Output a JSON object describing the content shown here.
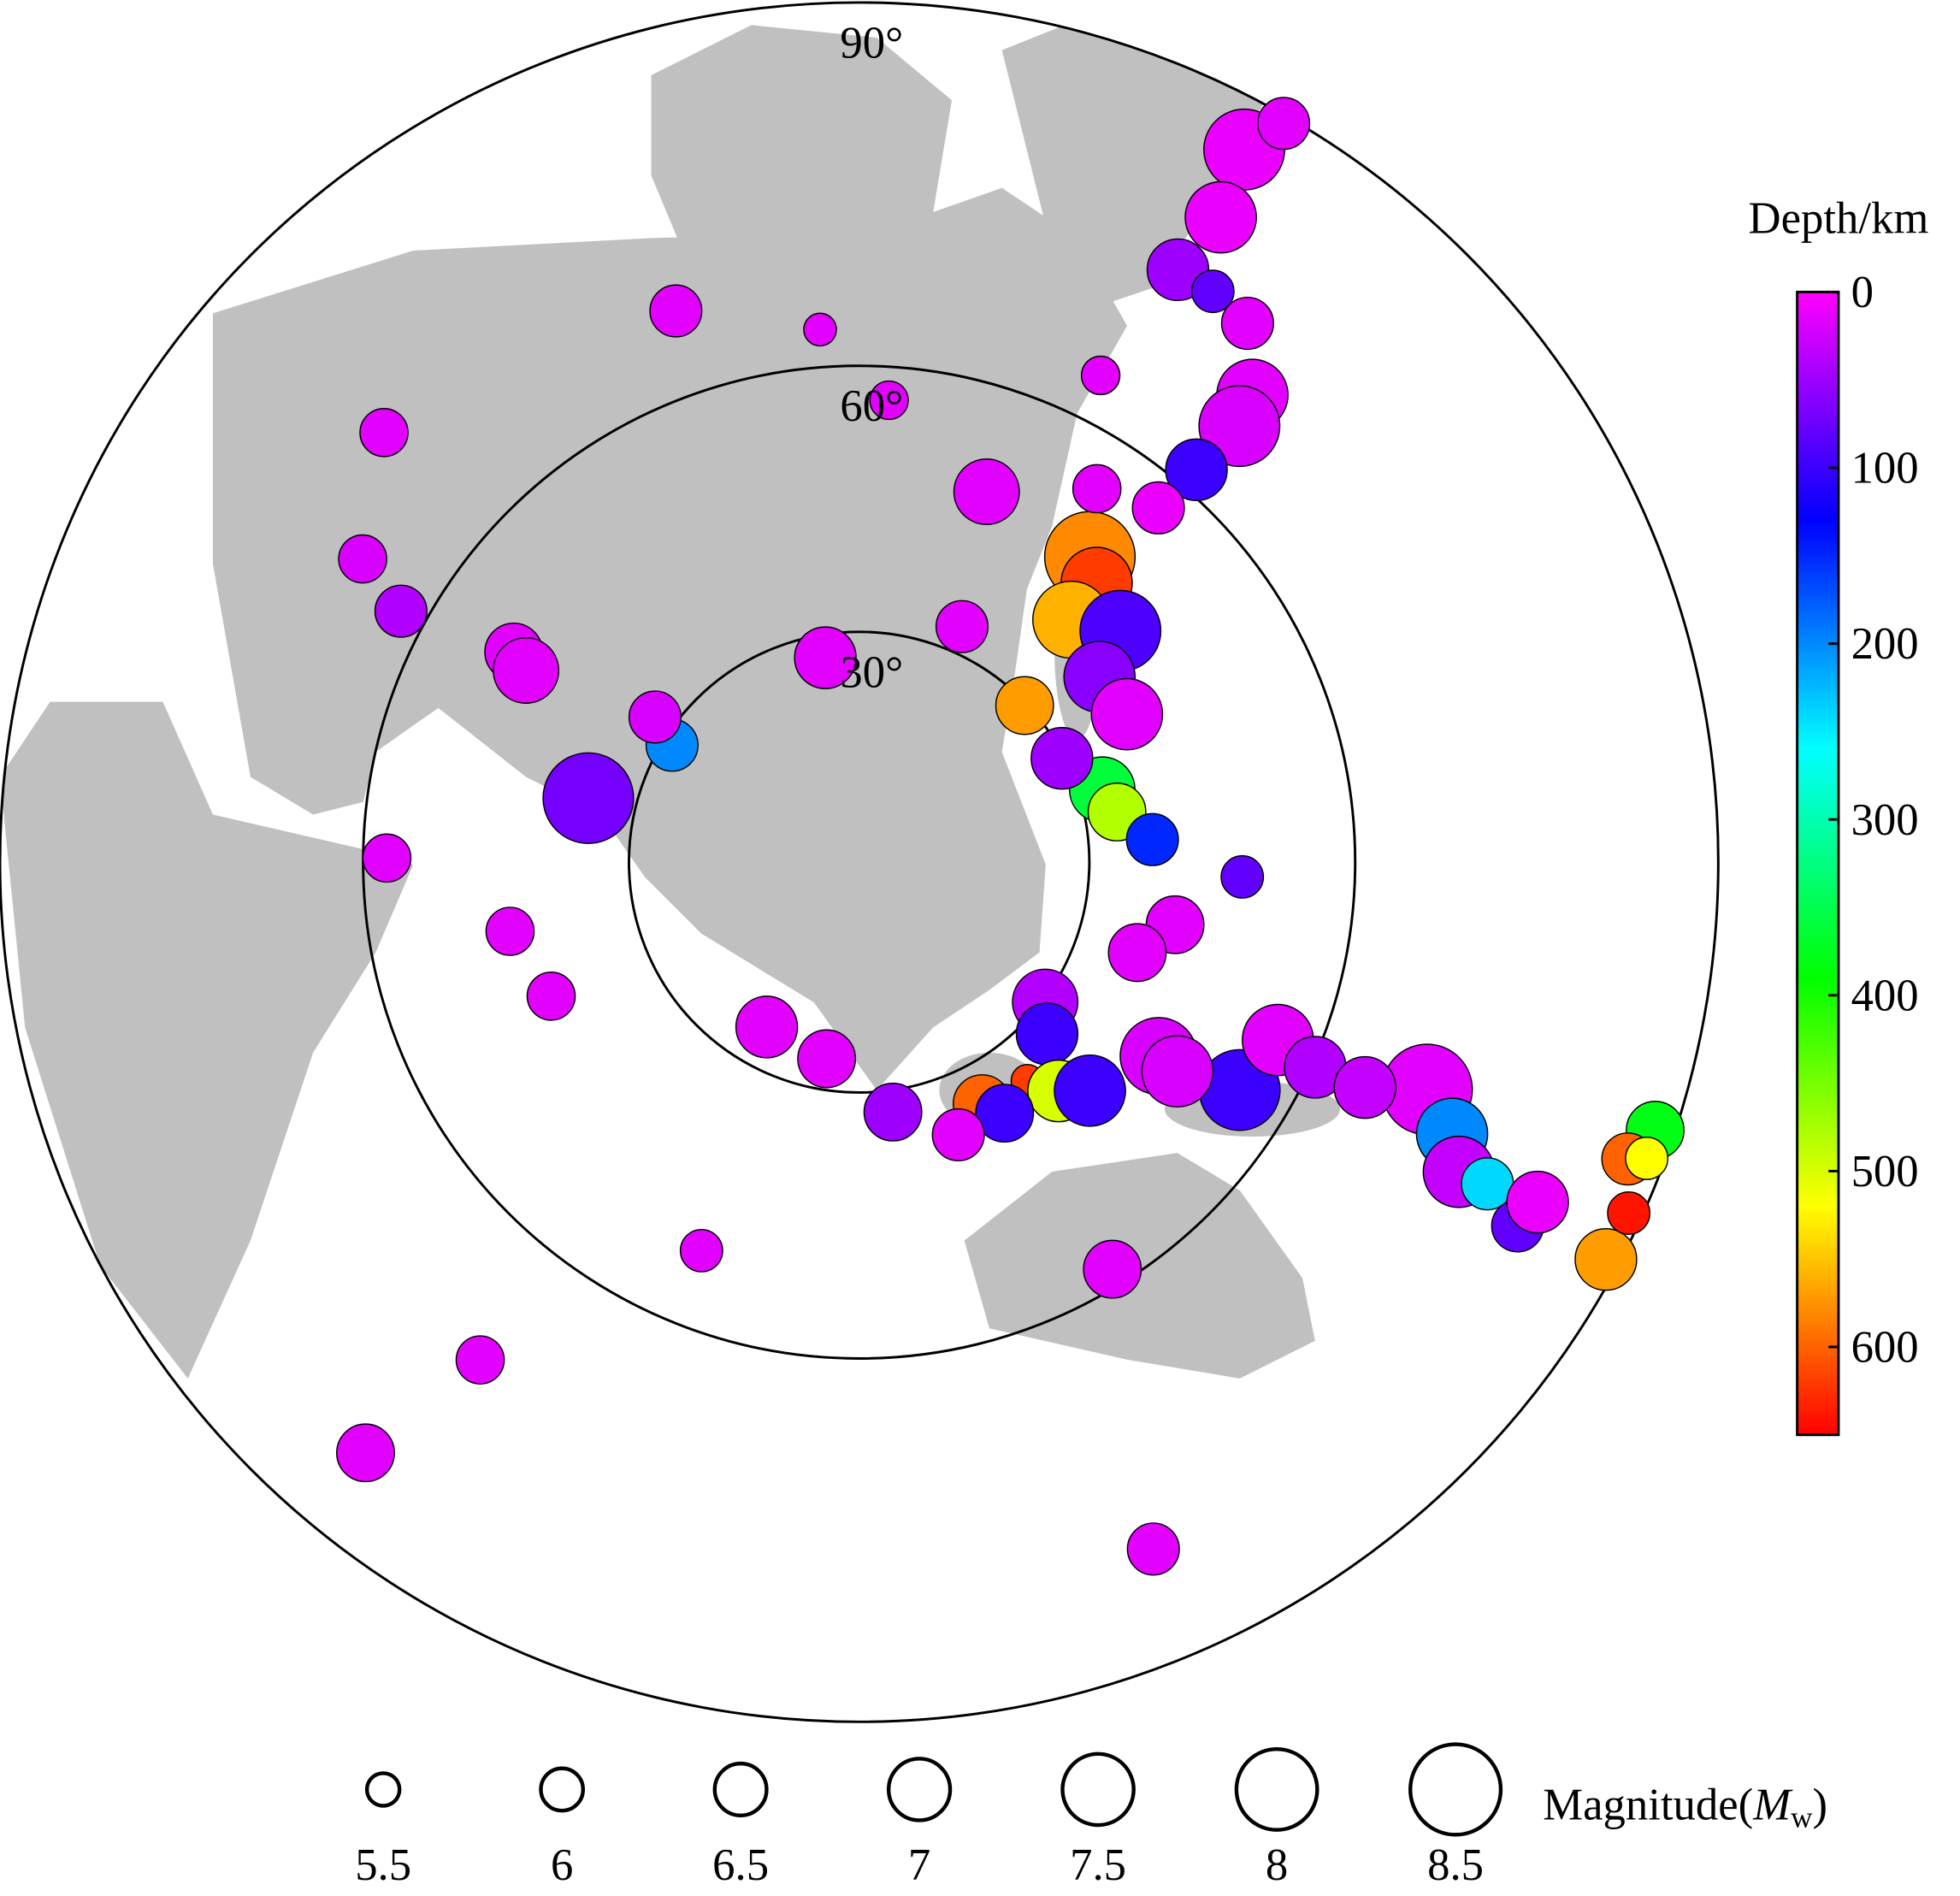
{
  "chart_data": {
    "type": "bubble-map",
    "projection": "stereographic",
    "distance_max": 90,
    "distance_circles": [
      {
        "value": 30,
        "label": "30°"
      },
      {
        "value": 60,
        "label": "60°"
      },
      {
        "value": 90,
        "label": "90°"
      }
    ],
    "events": {
      "distance": [
        86.6,
        81.4,
        76.1,
        76.0,
        75.4,
        70.8,
        67.9,
        62.1,
        56.7,
        48.0,
        46.2,
        41.1,
        44.2,
        38.9,
        39.2,
        29.7,
        32.9,
        34.0,
        37.8,
        48.1,
        41.1,
        37.6,
        30.3,
        33.0,
        35.6,
        38.9,
        41.4,
        45.1,
        54.6,
        55.8,
        60.4,
        70.9,
        74.4,
        76.3,
        78.8,
        82.4,
        82.9,
        88.7,
        87.6,
        88.8,
        89.1,
        89.1,
        35.0,
        37.3,
        37.3,
        32.7,
        26.1,
        24.8,
        58.3,
        82.0,
        52.0,
        72.1,
        83.7,
        42.7,
        45.0,
        57.6,
        35.9,
        28.8,
        32.5,
        50.4,
        48.2,
        62.6,
        68.2,
        73.4,
        68.1,
        63.7,
        56.6,
        49.0,
        54.5,
        33.3,
        27.1,
        64.6,
        89.5,
        29.7,
        47.8,
        65.6
      ],
      "azimuth": [
        28.4,
        29.3,
        28.3,
        31.8,
        35.8,
        40.1,
        41.1,
        40.7,
        40.2,
        37.1,
        40.4,
        41.2,
        48.5,
        52.4,
        61.1,
        46.6,
        73.4,
        79.0,
        85.6,
        92.2,
        101.2,
        108.0,
        126.9,
        132.4,
        142.4,
        138.9,
        134.7,
        122.9,
        120.9,
        113.0,
        114.2,
        111.8,
        114.6,
        117.3,
        117.1,
        118.9,
        116.6,
        108.6,
        111.1,
        110.6,
        118.0,
        114.5,
        153.0,
        149.9,
        160.0,
        172.3,
        189.4,
        209.3,
        148.1,
        156.8,
        202.1,
        217.3,
        219.9,
        246.5,
        258.8,
        270.5,
        283.3,
        302.0,
        305.4,
        301.3,
        299.9,
        298.7,
        301.4,
        312.1,
        341.6,
        355.8,
        3.7,
        19.0,
        32.5,
        23.6,
        350.6,
        26.4,
        29.9,
        62.9,
        123.3,
        114.0
      ],
      "depth": [
        10,
        10,
        50,
        80,
        15,
        15,
        20,
        100,
        10,
        580,
        620,
        560,
        90,
        60,
        15,
        570,
        360,
        480,
        150,
        80,
        15,
        15,
        40,
        100,
        620,
        500,
        100,
        20,
        100,
        15,
        40,
        15,
        200,
        30,
        240,
        80,
        10,
        380,
        600,
        520,
        570,
        640,
        600,
        100,
        15,
        50,
        15,
        15,
        15,
        15,
        15,
        15,
        15,
        15,
        15,
        15,
        70,
        200,
        20,
        15,
        15,
        40,
        20,
        15,
        15,
        15,
        15,
        15,
        15,
        15,
        15,
        15,
        15,
        50,
        20,
        30
      ],
      "magnitude": [
        8.0,
        7.5,
        7.0,
        6.0,
        6.5,
        7.5,
        8.0,
        7.0,
        6.5,
        8.5,
        7.5,
        7.8,
        8.0,
        7.5,
        7.5,
        6.8,
        7.2,
        6.8,
        6.5,
        6.0,
        6.8,
        6.8,
        7.2,
        7.0,
        5.5,
        7.0,
        7.5,
        7.8,
        8.0,
        7.5,
        7.0,
        8.5,
        7.5,
        7.5,
        6.5,
        6.5,
        7.0,
        6.8,
        6.5,
        6.0,
        7.0,
        6.0,
        6.8,
        6.8,
        6.5,
        6.8,
        6.8,
        7.0,
        6.8,
        6.5,
        6.0,
        6.3,
        6.8,
        6.3,
        6.3,
        6.3,
        8.5,
        6.5,
        6.5,
        6.8,
        7.2,
        6.5,
        6.3,
        6.3,
        6.5,
        5.5,
        5.8,
        7.2,
        6.3,
        6.5,
        7.0,
        5.8,
        6.5,
        7.0,
        7.5,
        7.0
      ]
    },
    "colorbar": {
      "title": "Depth/km",
      "lim": [
        0,
        650
      ],
      "ticks": [
        0,
        100,
        200,
        300,
        400,
        500,
        600
      ],
      "colors": [
        "#ff00ff",
        "#0000ff",
        "#00ffff",
        "#00ff00",
        "#ffff00",
        "#ff0000"
      ]
    },
    "size_legend": {
      "values": [
        5.5,
        6,
        6.5,
        7,
        7.5,
        8,
        8.5
      ],
      "title": {
        "text": "Magnitude(",
        "symbol": "M",
        "subscript": "w",
        "close": ")"
      }
    }
  }
}
